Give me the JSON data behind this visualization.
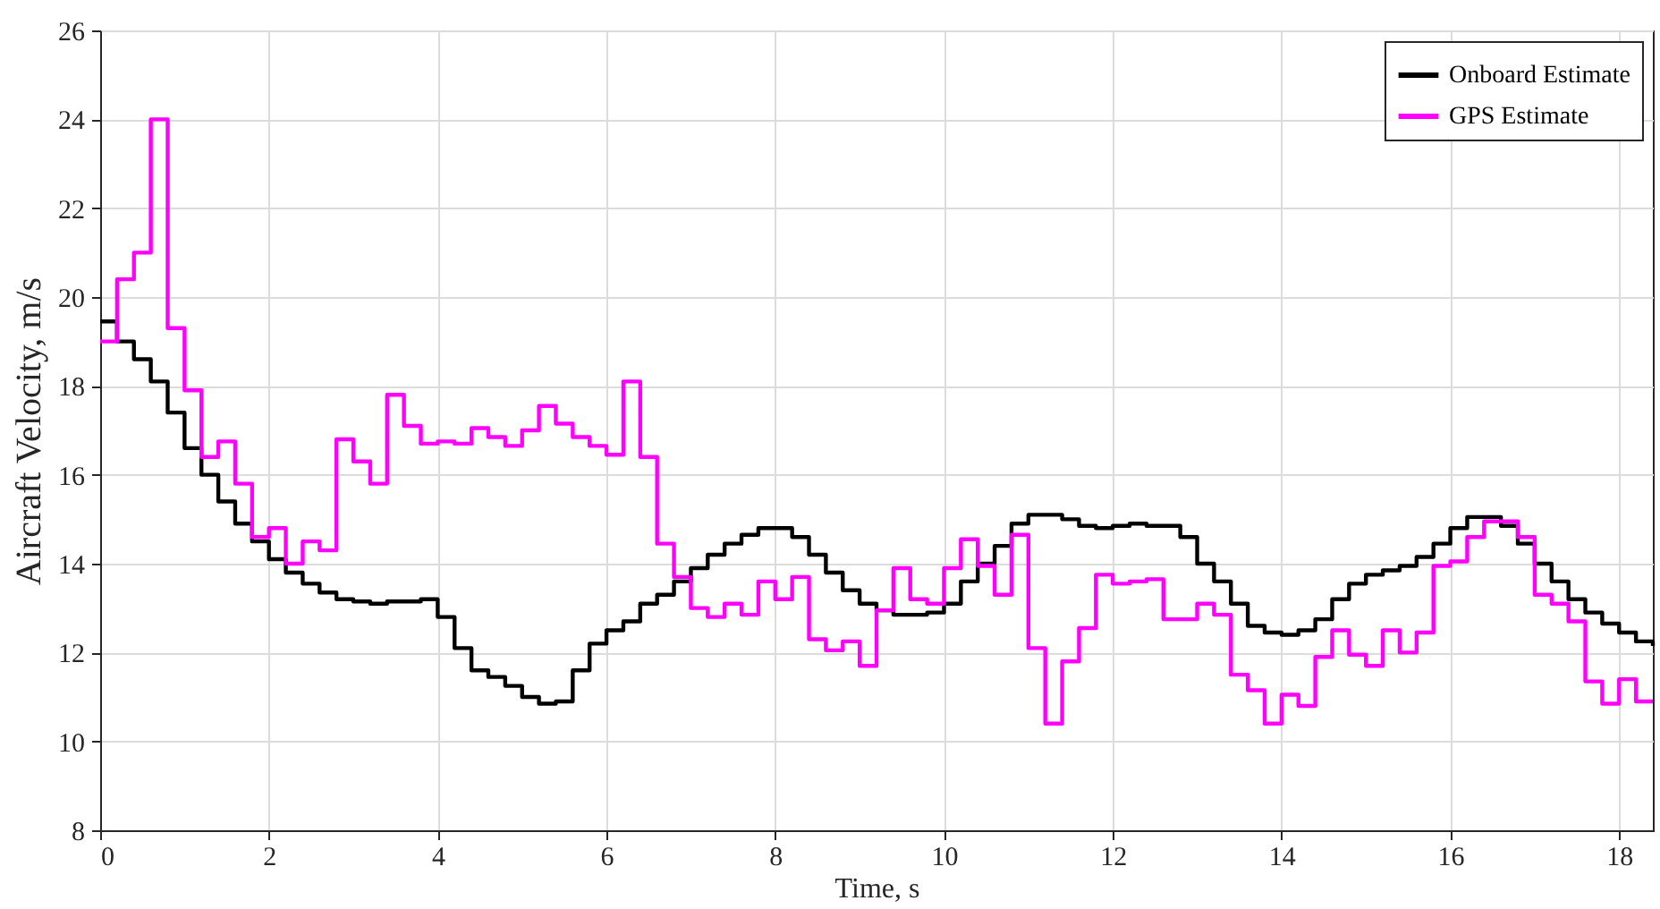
{
  "chart_data": {
    "type": "step",
    "xlabel": "Time, s",
    "ylabel": "Aircraft Velocity, m/s",
    "xlim": [
      0,
      18.4
    ],
    "ylim": [
      8,
      26
    ],
    "xticks": [
      0,
      2,
      4,
      6,
      8,
      10,
      12,
      14,
      16,
      18
    ],
    "yticks": [
      8,
      10,
      12,
      14,
      16,
      18,
      20,
      22,
      24,
      26
    ],
    "grid": true,
    "legend": "top right",
    "line_style": "solid",
    "marker": "none",
    "series": [
      {
        "name": "Onboard Estimate",
        "color": "#000000",
        "x": [
          0,
          0.2,
          0.4,
          0.6,
          0.8,
          1.0,
          1.2,
          1.4,
          1.6,
          1.8,
          2.0,
          2.2,
          2.4,
          2.6,
          2.8,
          3.0,
          3.2,
          3.4,
          3.6,
          3.8,
          4.0,
          4.2,
          4.4,
          4.6,
          4.8,
          5.0,
          5.2,
          5.4,
          5.6,
          5.8,
          6.0,
          6.2,
          6.4,
          6.6,
          6.8,
          7.0,
          7.2,
          7.4,
          7.6,
          7.8,
          8.0,
          8.2,
          8.4,
          8.6,
          8.8,
          9.0,
          9.2,
          9.4,
          9.6,
          9.8,
          10.0,
          10.2,
          10.4,
          10.6,
          10.8,
          11.0,
          11.2,
          11.4,
          11.6,
          11.8,
          12.0,
          12.2,
          12.4,
          12.6,
          12.8,
          13.0,
          13.2,
          13.4,
          13.6,
          13.8,
          14.0,
          14.2,
          14.4,
          14.6,
          14.8,
          15.0,
          15.2,
          15.4,
          15.6,
          15.8,
          16.0,
          16.2,
          16.4,
          16.6,
          16.8,
          17.0,
          17.2,
          17.4,
          17.6,
          17.8,
          18.0,
          18.2,
          18.4
        ],
        "values": [
          19.45,
          19.0,
          18.6,
          18.1,
          17.4,
          16.6,
          16.0,
          15.4,
          14.9,
          14.5,
          14.1,
          13.8,
          13.55,
          13.35,
          13.2,
          13.15,
          13.1,
          13.15,
          13.15,
          13.2,
          12.8,
          12.1,
          11.6,
          11.45,
          11.25,
          11.0,
          10.85,
          10.9,
          11.6,
          12.2,
          12.5,
          12.7,
          13.1,
          13.3,
          13.6,
          13.9,
          14.2,
          14.45,
          14.65,
          14.8,
          14.8,
          14.6,
          14.2,
          13.8,
          13.4,
          13.1,
          12.95,
          12.85,
          12.85,
          12.9,
          13.1,
          13.6,
          14.0,
          14.4,
          14.9,
          15.1,
          15.1,
          15.0,
          14.85,
          14.8,
          14.85,
          14.9,
          14.85,
          14.85,
          14.6,
          14.0,
          13.6,
          13.1,
          12.6,
          12.45,
          12.4,
          12.5,
          12.75,
          13.2,
          13.55,
          13.75,
          13.85,
          13.95,
          14.15,
          14.45,
          14.8,
          15.05,
          15.05,
          14.85,
          14.45,
          14.0,
          13.6,
          13.2,
          12.9,
          12.65,
          12.45,
          12.25,
          12.15
        ]
      },
      {
        "name": "GPS Estimate",
        "color": "#ff00ff",
        "x": [
          0,
          0.2,
          0.4,
          0.6,
          0.8,
          1.0,
          1.2,
          1.4,
          1.6,
          1.8,
          2.0,
          2.2,
          2.4,
          2.6,
          2.8,
          3.0,
          3.2,
          3.4,
          3.6,
          3.8,
          4.0,
          4.2,
          4.4,
          4.6,
          4.8,
          5.0,
          5.2,
          5.4,
          5.6,
          5.8,
          6.0,
          6.2,
          6.4,
          6.6,
          6.8,
          7.0,
          7.2,
          7.4,
          7.6,
          7.8,
          8.0,
          8.2,
          8.4,
          8.6,
          8.8,
          9.0,
          9.2,
          9.4,
          9.6,
          9.8,
          10.0,
          10.2,
          10.4,
          10.6,
          10.8,
          11.0,
          11.2,
          11.4,
          11.6,
          11.8,
          12.0,
          12.2,
          12.4,
          12.6,
          12.8,
          13.0,
          13.2,
          13.4,
          13.6,
          13.8,
          14.0,
          14.2,
          14.4,
          14.6,
          14.8,
          15.0,
          15.2,
          15.4,
          15.6,
          15.8,
          16.0,
          16.2,
          16.4,
          16.6,
          16.8,
          17.0,
          17.2,
          17.4,
          17.6,
          17.8,
          18.0,
          18.2,
          18.4
        ],
        "values": [
          19.0,
          20.4,
          21.0,
          24.0,
          19.3,
          17.9,
          16.4,
          16.75,
          15.8,
          14.6,
          14.8,
          14.0,
          14.5,
          14.3,
          16.8,
          16.3,
          15.8,
          17.8,
          17.1,
          16.7,
          16.75,
          16.7,
          17.05,
          16.85,
          16.65,
          17.0,
          17.55,
          17.15,
          16.85,
          16.65,
          16.45,
          18.1,
          16.4,
          14.45,
          13.7,
          13.0,
          12.8,
          13.1,
          12.85,
          13.6,
          13.2,
          13.7,
          12.3,
          12.05,
          12.25,
          11.7,
          12.95,
          13.9,
          13.2,
          13.1,
          13.9,
          14.55,
          13.95,
          13.3,
          14.65,
          12.1,
          10.4,
          11.8,
          12.55,
          13.75,
          13.55,
          13.6,
          13.65,
          12.75,
          12.75,
          13.1,
          12.85,
          11.5,
          11.15,
          10.4,
          11.05,
          10.8,
          11.9,
          12.5,
          11.95,
          11.7,
          12.5,
          12.0,
          12.45,
          13.95,
          14.05,
          14.6,
          14.95,
          14.95,
          14.6,
          13.3,
          13.1,
          12.7,
          11.35,
          10.85,
          11.4,
          10.9,
          10.9
        ]
      }
    ]
  }
}
